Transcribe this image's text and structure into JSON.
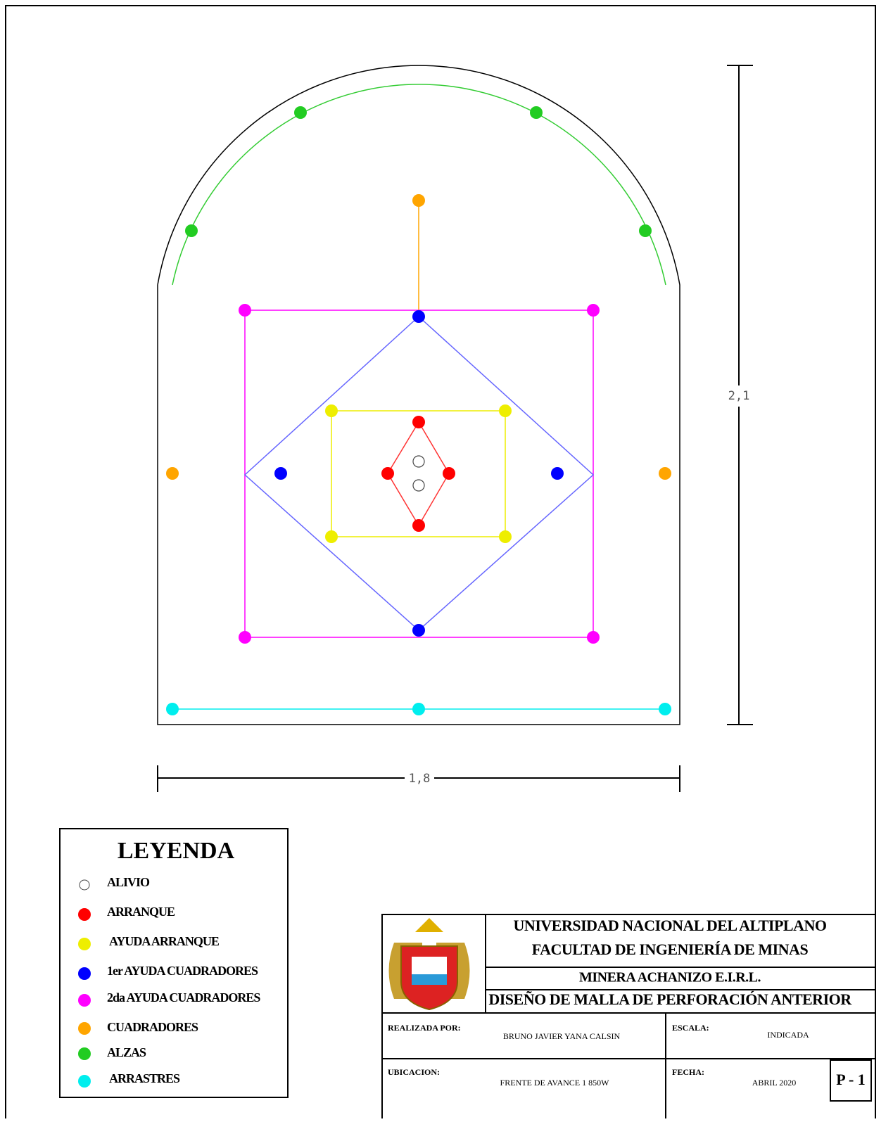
{
  "drawing": {
    "height_label": "2,1",
    "width_label": "1,8"
  },
  "legend": {
    "title": "LEYENDA",
    "items": [
      "ALIVIO",
      "ARRANQUE",
      "AYUDA ARRANQUE",
      "1er AYUDA CUADRADORES",
      "2da AYUDA CUADRADORES",
      "CUADRADORES",
      "ALZAS",
      "ARRASTRES"
    ]
  },
  "title_block": {
    "university": "UNIVERSIDAD NACIONAL DEL ALTIPLANO",
    "faculty": "FACULTAD DE INGENIERÍA DE MINAS",
    "company": "MINERA ACHANIZO E.I.R.L.",
    "project": "DISEÑO DE MALLA DE PERFORACIÓN ANTERIOR",
    "made_by_label": "REALIZADA POR:",
    "made_by": "BRUNO JAVIER YANA CALSIN",
    "scale_label": "ESCALA:",
    "scale": "INDICADA",
    "location_label": "UBICACION:",
    "location": "FRENTE DE AVANCE 1 850W",
    "date_label": "FECHA:",
    "date": "ABRIL 2020",
    "sheet": "P - 1"
  }
}
